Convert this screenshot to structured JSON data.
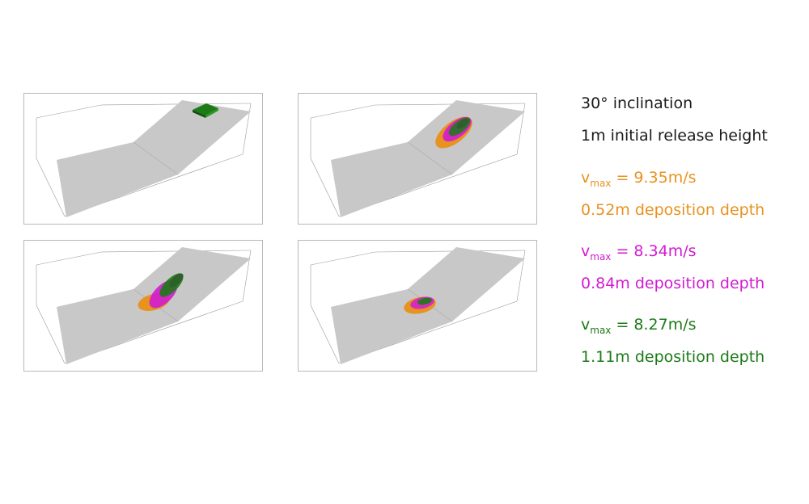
{
  "panels": [
    {
      "id": "p1",
      "state": "initial"
    },
    {
      "id": "p2",
      "state": "flowing"
    },
    {
      "id": "p3",
      "state": "spreading"
    },
    {
      "id": "p4",
      "state": "deposited"
    }
  ],
  "legend": {
    "inclination": "30° inclination",
    "release_height": "1m initial release height",
    "entries": [
      {
        "v_symbol": "v",
        "v_sub": "max",
        "v_value": "= 9.35m/s",
        "depth": "0.52m deposition depth",
        "color": "#e8921f"
      },
      {
        "v_symbol": "v",
        "v_sub": "max",
        "v_value": "= 8.34m/s",
        "depth": "0.84m deposition depth",
        "color": "#d21bd2"
      },
      {
        "v_symbol": "v",
        "v_sub": "max",
        "v_value": "= 8.27m/s",
        "depth": "1.11m deposition depth",
        "color": "#1c7a17"
      }
    ]
  },
  "colors": {
    "surface": "#c8c8c8",
    "orange": "#e8921f",
    "magenta": "#d21bd2",
    "green": "#1c7a17"
  }
}
